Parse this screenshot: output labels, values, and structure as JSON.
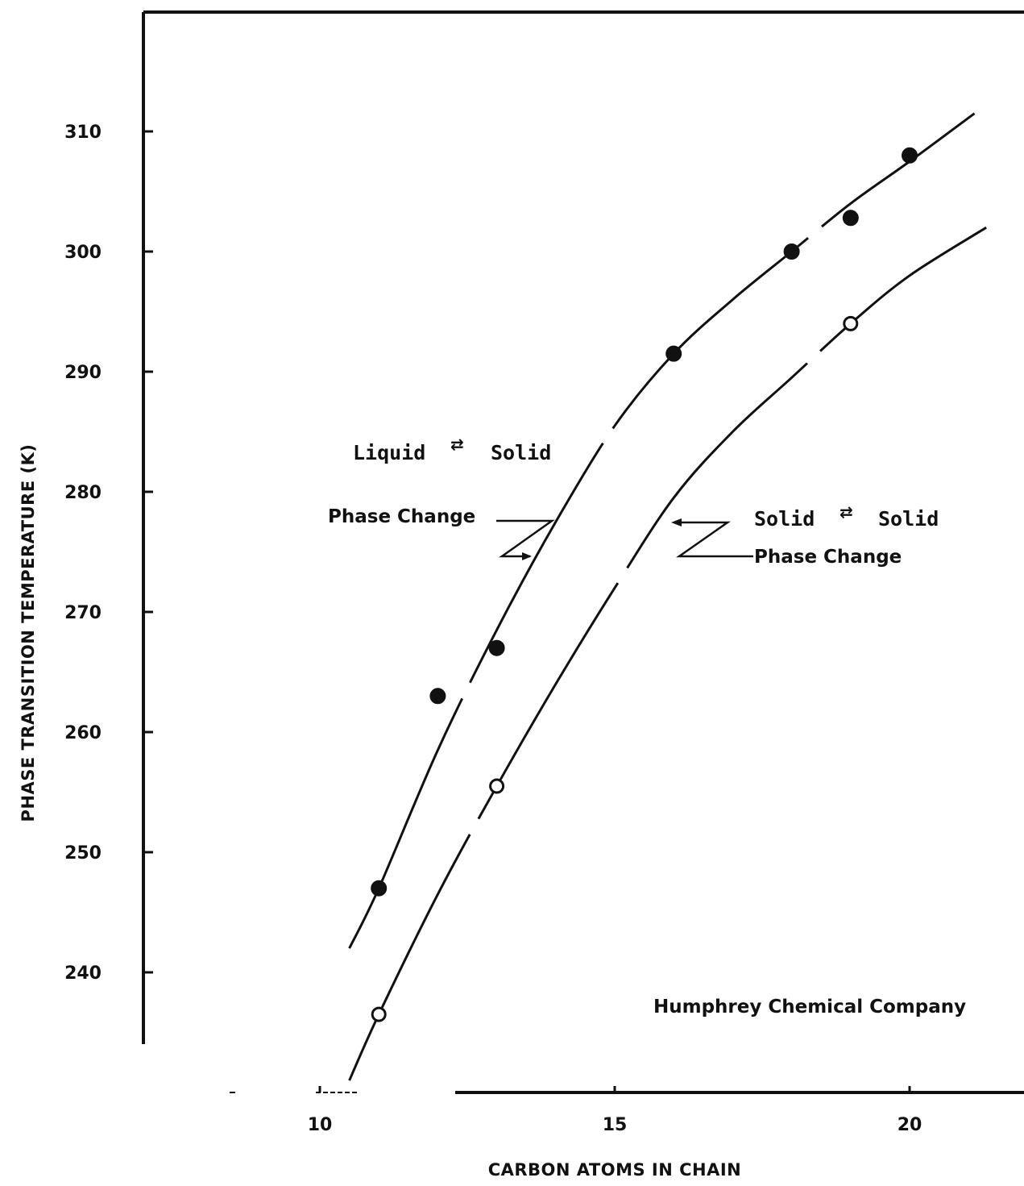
{
  "chart_data": {
    "type": "scatter",
    "title": "",
    "xlabel": "CARBON ATOMS IN CHAIN",
    "ylabel": "PHASE TRANSITION TEMPERATURE (K)",
    "xlim": [
      7.5,
      21.5
    ],
    "ylim": [
      230,
      320
    ],
    "x_ticks": [
      10,
      15,
      20
    ],
    "y_ticks": [
      240,
      250,
      260,
      270,
      280,
      290,
      300,
      310
    ],
    "grid": false,
    "series": [
      {
        "marker": "filled-circle",
        "x": [
          11,
          12,
          13,
          16,
          18,
          19,
          20
        ],
        "y": [
          247,
          263,
          267,
          291.5,
          300,
          302.8,
          308
        ]
      },
      {
        "marker": "open-circle",
        "x": [
          11,
          13,
          19
        ],
        "y": [
          236.5,
          255.5,
          294
        ]
      }
    ],
    "curves": [
      {
        "x": [
          10.5,
          11,
          12,
          13,
          14,
          15,
          16,
          17,
          18,
          19,
          20,
          21.1
        ],
        "y": [
          242,
          247,
          258.5,
          268.5,
          277.5,
          285.5,
          291.5,
          296,
          300,
          304,
          307.5,
          311.5
        ]
      },
      {
        "x": [
          10.5,
          11,
          12,
          13,
          14,
          15,
          16,
          17,
          18,
          19,
          20,
          21.3
        ],
        "y": [
          231,
          236.5,
          246.5,
          255.5,
          264,
          272,
          279.5,
          285,
          289.5,
          294,
          298,
          302
        ]
      }
    ],
    "annotations": {
      "liquid_a": "Liquid",
      "liquid_b": "Solid",
      "liquid_c": "Phase Change",
      "solid_a": "Solid",
      "solid_b": "Solid",
      "solid_c": "Phase Change",
      "exchange_symbol": "⇄",
      "credit": "Humphrey Chemical Company"
    }
  }
}
